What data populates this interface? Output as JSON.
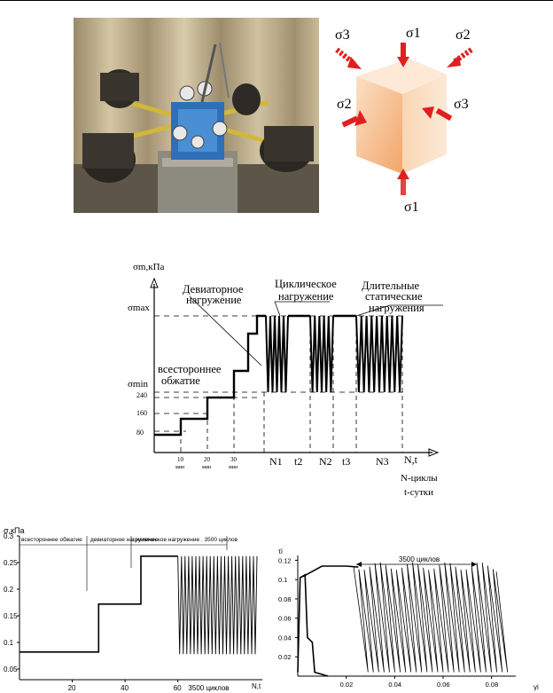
{
  "figure_top": {
    "sigma_labels": [
      "σ3",
      "σ1",
      "σ2",
      "σ2",
      "σ3",
      "σ1"
    ]
  },
  "diagram": {
    "y_axis_label": "σm,кПа",
    "y_max_label": "σmax",
    "y_min_label": "σmin",
    "y_ticks": [
      "240",
      "160",
      "80"
    ],
    "x_ticks": [
      {
        "num": "10",
        "unit": "мин"
      },
      {
        "num": "20",
        "unit": "мин"
      },
      {
        "num": "30",
        "unit": "мин"
      }
    ],
    "stage_labels": [
      "N1",
      "t2",
      "N2",
      "t3",
      "N3",
      "N,t"
    ],
    "legend_n": "N-циклы",
    "legend_t": "t-сутки",
    "annotations": {
      "deviatoric_line1": "Девиаторное",
      "deviatoric_line2": "нагружение",
      "cyclic_line1": "Циклическое",
      "cyclic_line2": "нагружение",
      "longterm_line1": "Длительные",
      "longterm_line2": "статические",
      "longterm_line3": "нагружения",
      "allround_line1": "всестороннее",
      "allround_line2": "обжатие"
    }
  },
  "chart_data": [
    {
      "type": "line",
      "ylabel": "σ,кПа",
      "xlabel": "N,t",
      "ylim": [
        0.03,
        0.3
      ],
      "xlim": [
        0,
        92
      ],
      "y_ticks": [
        "0.3",
        "0.25",
        "0.2",
        "0.15",
        "0.1",
        "0.05"
      ],
      "x_ticks": [
        "20",
        "40",
        "60",
        "3500 циклов"
      ],
      "stage_labels": [
        "всестороннее обжатие",
        "девиаторное нагружение",
        "циклическое нагружение . 3500 циклов"
      ],
      "series": [
        {
          "steps": [
            [
              0,
              0.082
            ],
            [
              30,
              0.082
            ],
            [
              30,
              0.172
            ],
            [
              46,
              0.172
            ],
            [
              46,
              0.262
            ],
            [
              60,
              0.262
            ]
          ],
          "oscillation": {
            "x_start": 60,
            "x_end": 90,
            "min": 0.078,
            "max": 0.262,
            "cycles": 22
          }
        }
      ]
    },
    {
      "type": "line",
      "ylabel": "τi",
      "xlabel": "γi",
      "ylim": [
        0,
        0.125
      ],
      "xlim": [
        0,
        0.09
      ],
      "y_ticks": [
        "0.12",
        "0.1",
        "0.08",
        "0.06",
        "0.04",
        "0.02"
      ],
      "x_ticks": [
        "0.02",
        "0.04",
        "0.06",
        "0.08"
      ],
      "annotation": "3500 циклов",
      "series": [
        {
          "path": [
            [
              0.0,
              0.004
            ],
            [
              0.001,
              0.102
            ],
            [
              0.003,
              0.105
            ],
            [
              0.004,
              0.04
            ],
            [
              0.006,
              0.035
            ],
            [
              0.007,
              0.004
            ],
            [
              0.0125,
              0.0
            ]
          ],
          "upper": [
            [
              0.002,
              0.103
            ],
            [
              0.01,
              0.114
            ],
            [
              0.02,
              0.114
            ],
            [
              0.025,
              0.113
            ]
          ],
          "hysteresis": {
            "x_start": 0.018,
            "x_end": 0.082,
            "min": 0.0,
            "max": 0.114,
            "loops": 26
          }
        }
      ]
    }
  ]
}
